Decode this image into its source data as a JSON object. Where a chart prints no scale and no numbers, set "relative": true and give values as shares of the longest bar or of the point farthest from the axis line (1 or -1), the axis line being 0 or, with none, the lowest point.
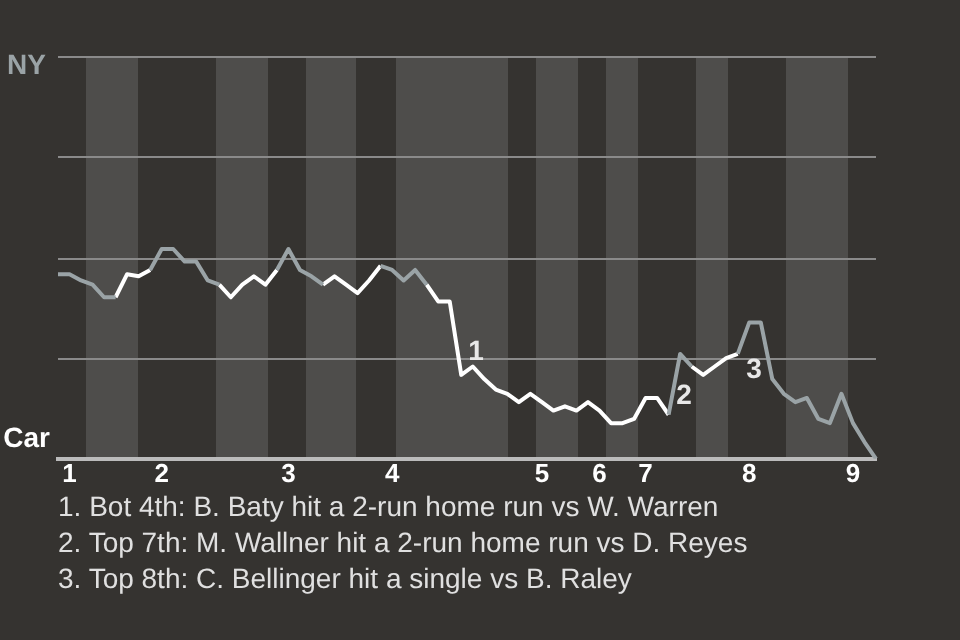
{
  "chart_data": {
    "type": "line",
    "relative": true,
    "categories": [
      null,
      "1",
      null,
      null,
      null,
      null,
      null,
      null,
      null,
      "2",
      null,
      null,
      null,
      null,
      null,
      null,
      null,
      null,
      null,
      null,
      "3",
      null,
      null,
      null,
      null,
      null,
      null,
      null,
      null,
      "4",
      null,
      null,
      null,
      null,
      null,
      null,
      null,
      null,
      null,
      null,
      null,
      null,
      "5",
      null,
      null,
      null,
      null,
      "6",
      null,
      null,
      null,
      "7",
      null,
      null,
      null,
      null,
      null,
      null,
      null,
      null,
      "8",
      null,
      null,
      null,
      null,
      null,
      null,
      null,
      null,
      "9",
      null,
      null
    ],
    "series": [
      {
        "color": "#9aa3a6",
        "values": [
          0.88,
          0.88,
          0.85,
          0.83,
          0.77,
          0.77,
          null,
          null,
          0.9,
          1,
          1,
          0.94,
          0.94,
          0.85,
          0.83,
          null,
          null,
          null,
          null,
          0.9,
          1,
          0.9,
          0.87,
          0.83,
          null,
          null,
          null,
          null,
          0.92,
          0.9,
          0.85,
          0.9,
          0.83,
          null,
          null,
          null,
          null,
          null,
          null,
          null,
          null,
          null,
          null,
          null,
          null,
          null,
          null,
          null,
          null,
          null,
          null,
          null,
          null,
          0.21,
          0.5,
          0.44,
          null,
          null,
          null,
          0.5,
          0.65,
          0.65,
          0.38,
          0.31,
          0.27,
          0.29,
          0.19,
          0.17,
          0.31,
          0.17,
          0.08,
          0
        ]
      },
      {
        "color": "#ffffff",
        "values": [
          null,
          null,
          null,
          null,
          null,
          0.77,
          0.88,
          0.87,
          0.9,
          null,
          null,
          null,
          null,
          null,
          0.83,
          0.77,
          0.83,
          0.87,
          0.83,
          0.9,
          null,
          null,
          null,
          0.83,
          0.87,
          0.83,
          0.79,
          0.85,
          0.92,
          null,
          null,
          null,
          0.83,
          0.75,
          0.75,
          0.4,
          0.44,
          0.38,
          0.33,
          0.31,
          0.27,
          0.31,
          0.27,
          0.23,
          0.25,
          0.23,
          0.27,
          0.23,
          0.17,
          0.17,
          0.19,
          0.29,
          0.29,
          0.21,
          null,
          0.44,
          0.4,
          0.44,
          0.48,
          0.5,
          null,
          null,
          null,
          null,
          null,
          null,
          null,
          null,
          null,
          null,
          null,
          null
        ]
      }
    ],
    "ref_lines": [
      {
        "axis": "y",
        "value": 0.48,
        "color": "#8a8a8a"
      },
      {
        "axis": "y",
        "value": 0.96,
        "color": "#8a8a8a"
      }
    ],
    "legend": false,
    "marker": "none",
    "line_style": "solid",
    "annotations": [
      "NY",
      "Car",
      "1",
      "2",
      "3",
      "1. Bot 4th: B. Baty hit a 2-run home run vs W. Warren",
      "2. Top 7th: M. Wallner hit a 2-run home run vs D. Reyes",
      "3. Top 8th: C. Bellinger hit a single vs B. Raley"
    ]
  }
}
